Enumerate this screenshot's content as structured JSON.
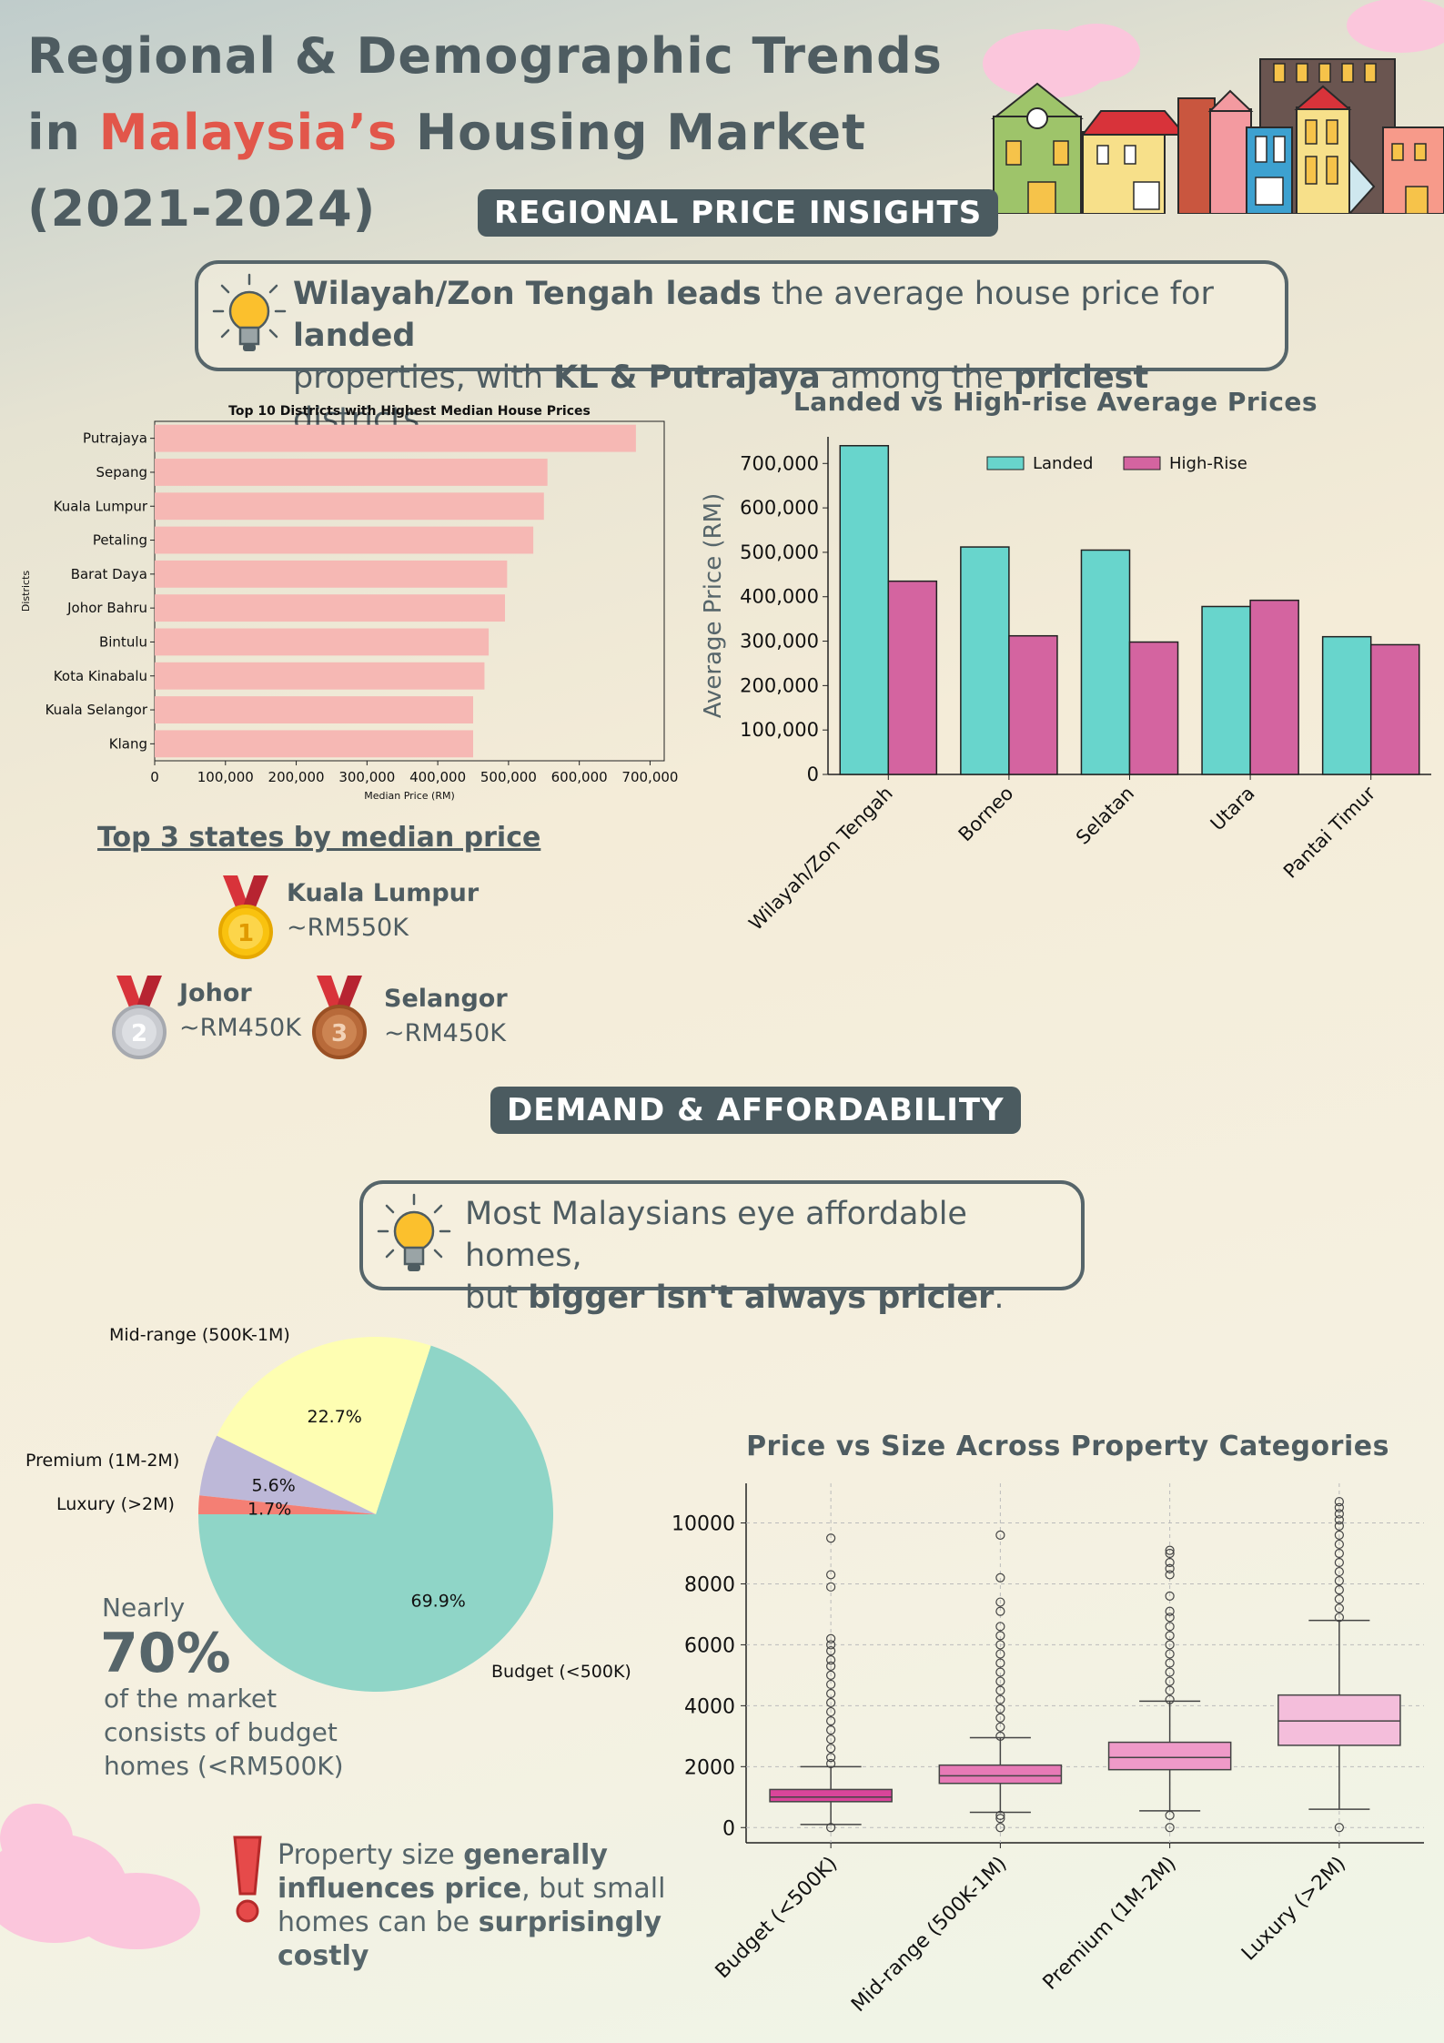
{
  "header": {
    "title_line1": "Regional & Demographic Trends",
    "title_line2_prefix": "in ",
    "title_line2_highlight": "Malaysia’s",
    "title_line2_suffix": " Housing Market",
    "title_line3": "(2021-2024)"
  },
  "sections": {
    "regional": "REGIONAL PRICE INSIGHTS",
    "demand": "DEMAND & AFFORDABILITY"
  },
  "callout1": {
    "b1": "Wilayah/Zon Tengah leads",
    "t1": " the average house price for ",
    "b2": "landed",
    "t2": "properties, with ",
    "b3": "KL & Putrajaya",
    "t3": " among the ",
    "b4": "priciest",
    "t4": " districts."
  },
  "callout2": {
    "t1": "Most Malaysians eye affordable homes,",
    "t2": "but ",
    "b1": "bigger isn't always pricier",
    "t3": "."
  },
  "top3": {
    "heading": "Top 3 states by median price",
    "first": {
      "rank": "1",
      "name": "Kuala Lumpur",
      "value": "~RM550K"
    },
    "second": {
      "rank": "2",
      "name": "Johor",
      "value": "~RM450K"
    },
    "third": {
      "rank": "3",
      "name": "Selangor",
      "value": "~RM450K"
    }
  },
  "stat": {
    "pre": "Nearly",
    "big": "70%",
    "l1": "of the market",
    "l2": "consists of budget",
    "l3": "homes (<RM500K)"
  },
  "note": {
    "t1": "Property size ",
    "b1": "generally",
    "b2": "influences price",
    "t2": ", but small",
    "t3": "homes can be ",
    "b3": "surprisingly",
    "b4": "costly"
  },
  "chart_data": [
    {
      "type": "bar",
      "orientation": "horizontal",
      "title": "Top 10 Districts with Highest Median House Prices",
      "xlabel": "Median Price (RM)",
      "ylabel": "Districts",
      "categories": [
        "Putrajaya",
        "Sepang",
        "Kuala Lumpur",
        "Petaling",
        "Barat Daya",
        "Johor Bahru",
        "Bintulu",
        "Kota Kinabalu",
        "Kuala Selangor",
        "Klang"
      ],
      "values": [
        680000,
        555000,
        550000,
        535000,
        498000,
        495000,
        472000,
        466000,
        450000,
        450000
      ],
      "xlim": [
        0,
        720000
      ],
      "xticks": [
        "0",
        "100,000",
        "200,000",
        "300,000",
        "400,000",
        "500,000",
        "600,000",
        "700,000"
      ],
      "color": "#f6b8b4"
    },
    {
      "type": "bar",
      "title": "Landed vs High-rise Average Prices",
      "ylabel": "Average Price (RM)",
      "categories": [
        "Wilayah/Zon Tengah",
        "Borneo",
        "Selatan",
        "Utara",
        "Pantai Timur"
      ],
      "series": [
        {
          "name": "Landed",
          "values": [
            740000,
            512000,
            505000,
            378000,
            310000
          ],
          "color": "#68d5cc"
        },
        {
          "name": "High-Rise",
          "values": [
            435000,
            312000,
            298000,
            392000,
            292000
          ],
          "color": "#d464a0"
        }
      ],
      "ylim": [
        0,
        760000
      ],
      "yticks": [
        "0",
        "100,000",
        "200,000",
        "300,000",
        "400,000",
        "500,000",
        "600,000",
        "700,000"
      ],
      "legend": "top-right"
    },
    {
      "type": "pie",
      "labels": [
        "Budget (<500K)",
        "Mid-range (500K-1M)",
        "Premium (1M-2M)",
        "Luxury (>2M)"
      ],
      "values": [
        69.9,
        22.7,
        5.6,
        1.7
      ],
      "pct_labels": [
        "69.9%",
        "22.7%",
        "5.6%",
        "1.7%"
      ],
      "colors": [
        "#8fd5c7",
        "#fefeb2",
        "#bdb8d8",
        "#f47f74"
      ]
    },
    {
      "type": "box",
      "title": "Price vs Size Across Property Categories",
      "categories": [
        "Budget (<500K)",
        "Mid-range (500K-1M)",
        "Premium (1M-2M)",
        "Luxury (>2M)"
      ],
      "ylim": [
        -500,
        11300
      ],
      "yticks": [
        "0",
        "2000",
        "4000",
        "6000",
        "8000",
        "10000"
      ],
      "boxes": [
        {
          "min": 100,
          "q1": 850,
          "median": 1000,
          "q3": 1250,
          "max": 2000,
          "fliers": [
            0,
            2100,
            2300,
            2600,
            2900,
            3200,
            3500,
            3800,
            4100,
            4400,
            4700,
            5000,
            5300,
            5500,
            5800,
            6000,
            6200,
            7900,
            8300,
            9500
          ],
          "color": "#d9459a"
        },
        {
          "min": 500,
          "q1": 1450,
          "median": 1700,
          "q3": 2050,
          "max": 2950,
          "fliers": [
            0,
            300,
            400,
            3000,
            3300,
            3600,
            3900,
            4200,
            4500,
            4800,
            5100,
            5400,
            5700,
            6000,
            6300,
            6600,
            7100,
            7400,
            8200,
            9600
          ],
          "color": "#e77ab6"
        },
        {
          "min": 550,
          "q1": 1900,
          "median": 2300,
          "q3": 2800,
          "max": 4150,
          "fliers": [
            0,
            400,
            4200,
            4500,
            4800,
            5100,
            5400,
            5700,
            6000,
            6300,
            6600,
            6900,
            7100,
            7600,
            8300,
            8500,
            8700,
            9000,
            9100
          ],
          "color": "#ef9ac8"
        },
        {
          "min": 600,
          "q1": 2700,
          "median": 3500,
          "q3": 4350,
          "max": 6800,
          "fliers": [
            0,
            6900,
            7200,
            7500,
            7800,
            8100,
            8400,
            8700,
            9000,
            9300,
            9600,
            9900,
            10100,
            10300,
            10500,
            10700
          ],
          "color": "#f4bedb"
        }
      ]
    }
  ]
}
